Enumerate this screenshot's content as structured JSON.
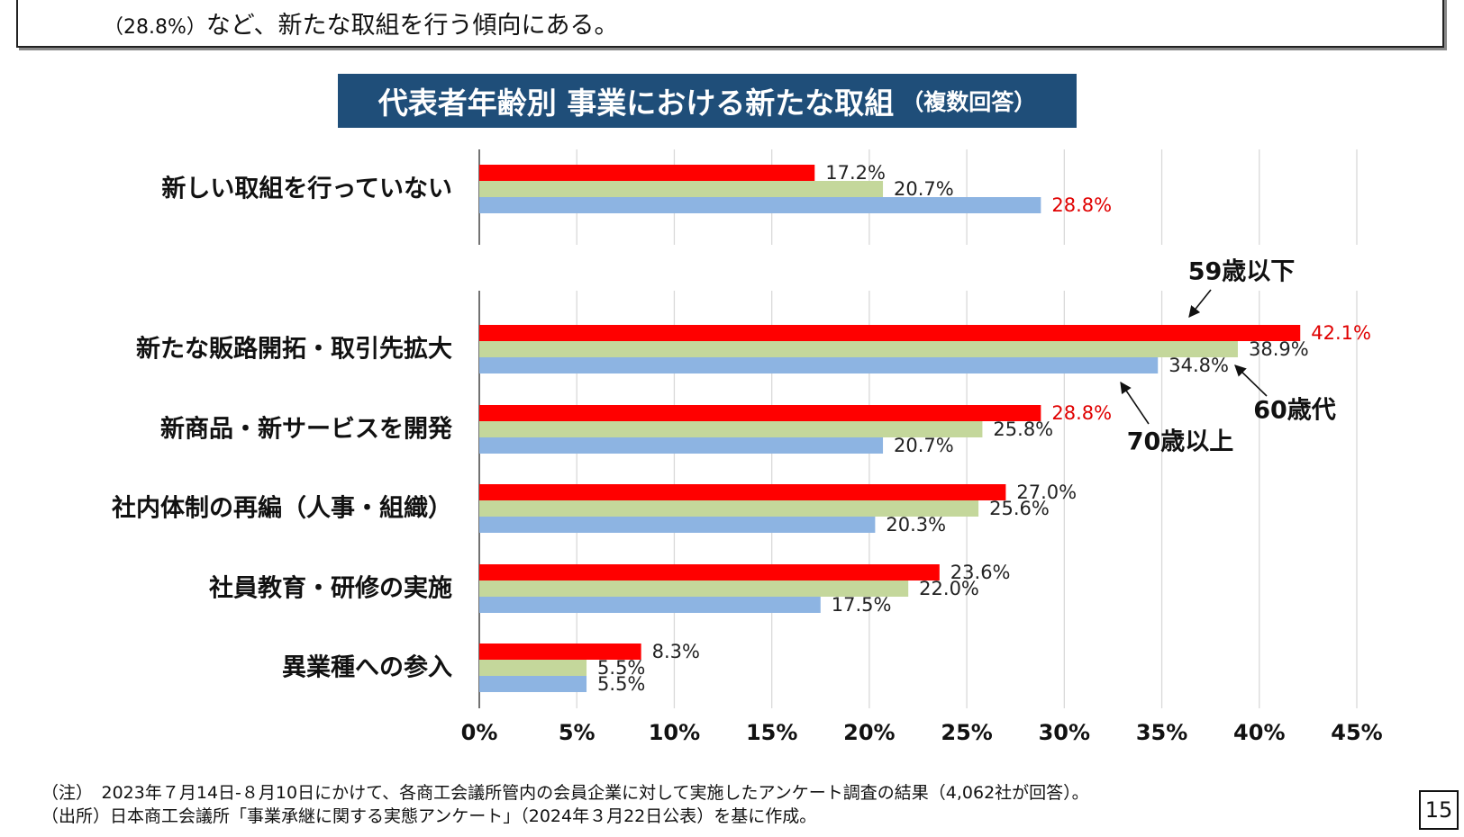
{
  "summary": {
    "pct": "（28.8%）",
    "text": "など、新たな取組を行う傾向にある。"
  },
  "title": {
    "main": "代表者年齢別 事業における新たな取組",
    "sub": "（複数回答）"
  },
  "colors": {
    "s59": "#ff0000",
    "s60": "#c4d79b",
    "s70": "#8db4e2",
    "highlight_label": "#e00000",
    "title_bg": "#1f4e79"
  },
  "chart_data": {
    "type": "bar",
    "orientation": "horizontal",
    "categories": [
      "新しい取組を行っていない",
      "新たな販路開拓・取引先拡大",
      "新商品・新サービスを開発",
      "社内体制の再編（人事・組織）",
      "社員教育・研修の実施",
      "異業種への参入"
    ],
    "series": [
      {
        "name": "59歳以下",
        "values": [
          17.2,
          42.1,
          28.8,
          27.0,
          23.6,
          8.3
        ]
      },
      {
        "name": "60歳代",
        "values": [
          20.7,
          38.9,
          25.8,
          25.6,
          22.0,
          5.5
        ]
      },
      {
        "name": "70歳以上",
        "values": [
          28.8,
          34.8,
          20.7,
          20.3,
          17.5,
          5.5
        ]
      }
    ],
    "value_labels": [
      [
        "17.2%",
        "20.7%",
        "28.8%"
      ],
      [
        "42.1%",
        "38.9%",
        "34.8%"
      ],
      [
        "28.8%",
        "25.8%",
        "20.7%"
      ],
      [
        "27.0%",
        "25.6%",
        "20.3%"
      ],
      [
        "23.6%",
        "22.0%",
        "17.5%"
      ],
      [
        "8.3%",
        "5.5%",
        "5.5%"
      ]
    ],
    "highlighted_labels": [
      [
        0,
        2
      ],
      [
        1,
        0
      ],
      [
        2,
        0
      ]
    ],
    "x_ticks": [
      "0%",
      "5%",
      "10%",
      "15%",
      "20%",
      "25%",
      "30%",
      "35%",
      "40%",
      "45%"
    ],
    "xlim": [
      0,
      45
    ],
    "grid": "vertical",
    "legend": "callouts with arrows"
  },
  "notes": {
    "note1": "（注）　2023年７月14日-８月10日にかけて、各商工会議所管内の会員企業に対して実施したアンケート調査の結果（4,062社が回答）。",
    "note2": "（出所）日本商工会議所「事業承継に関する実態アンケート」（2024年３月22日公表）を基に作成。"
  },
  "page_number": "15"
}
